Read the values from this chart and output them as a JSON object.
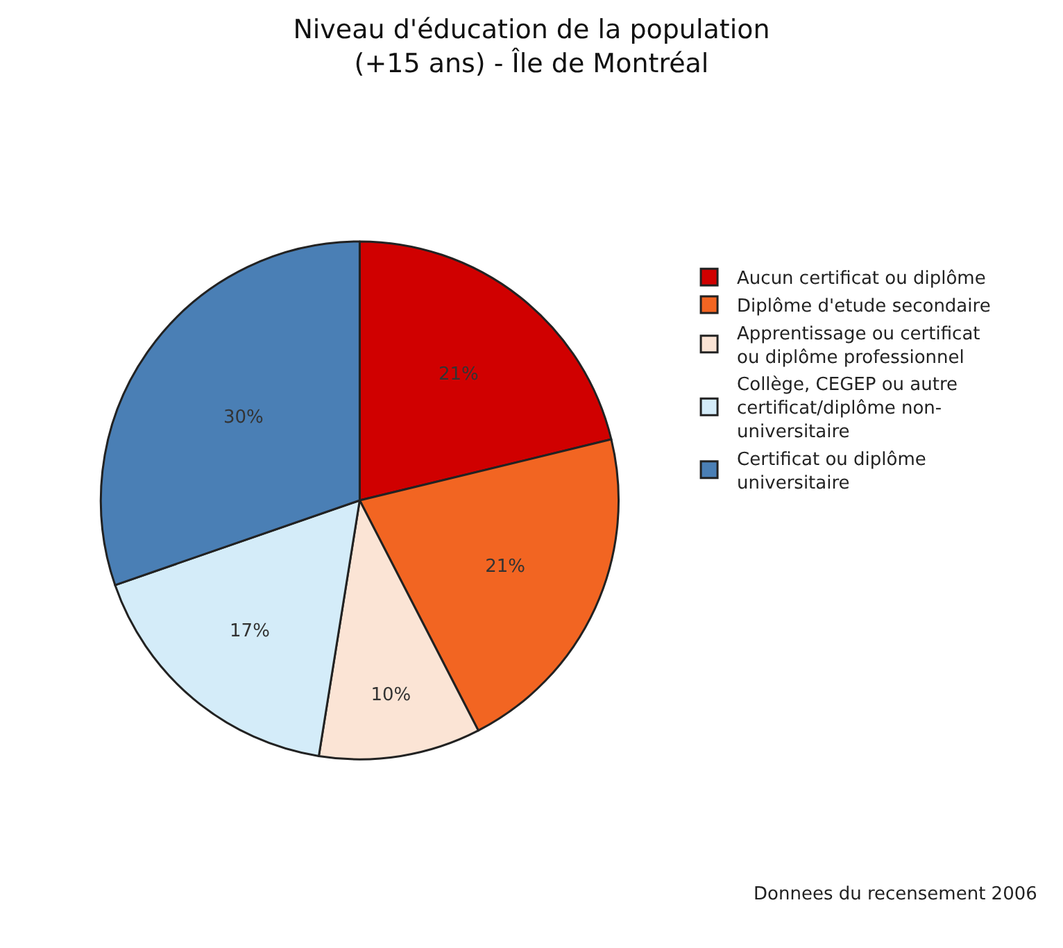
{
  "chart_data": {
    "type": "pie",
    "title": "Niveau d'éducation de la population (+15 ans) - Île de Montréal",
    "categories": [
      "Aucun certificat ou diplôme",
      "Diplôme d'etude secondaire",
      "Apprentissage ou certificat ou diplôme professionnel",
      "Collège, CEGEP ou autre certificat/diplôme non-universitaire",
      "Certificat ou diplôme universitaire"
    ],
    "values": [
      21,
      21,
      10,
      17,
      30
    ],
    "colors": [
      "#d00000",
      "#f26522",
      "#fbe4d5",
      "#d4ecf9",
      "#4a7fb5"
    ],
    "value_labels": [
      "21%",
      "21%",
      "10%",
      "17%",
      "30%"
    ],
    "legend": "right",
    "annotations": [
      "Donnees du recensement 2006"
    ]
  }
}
